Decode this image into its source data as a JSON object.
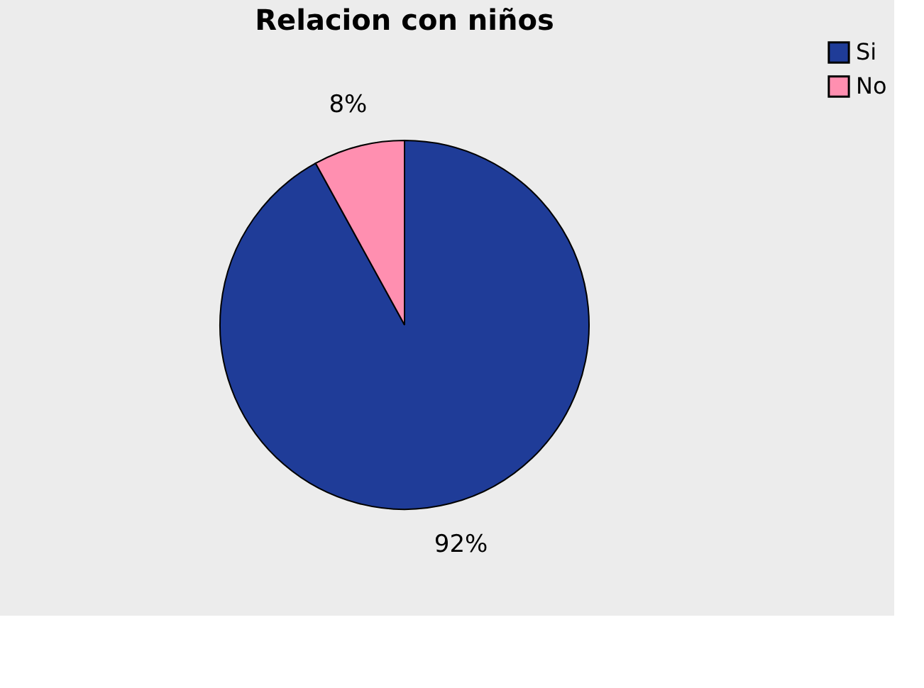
{
  "chart_data": {
    "type": "pie",
    "title": "Relacion con niños",
    "categories": [
      "Si",
      "No"
    ],
    "values": [
      92,
      8
    ],
    "colors": [
      "#1f3c98",
      "#ff8fb0"
    ],
    "value_labels": [
      "92%",
      "8%"
    ],
    "legend": "right"
  }
}
